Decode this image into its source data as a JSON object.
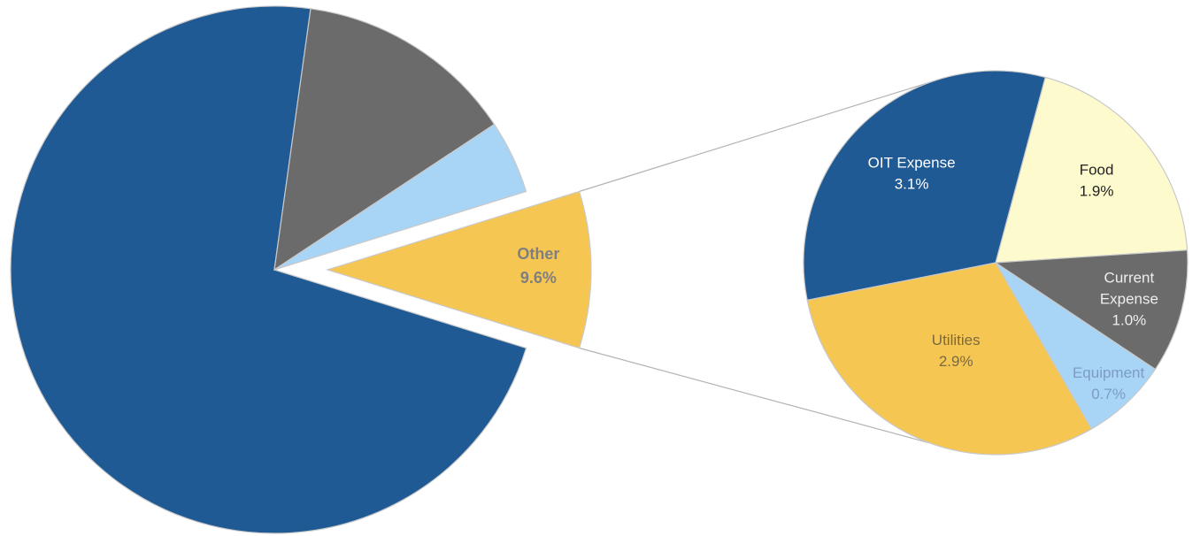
{
  "chart_data": [
    {
      "type": "pie",
      "series": [
        {
          "value": 72.4,
          "color": "#1f5a94"
        },
        {
          "value": 13.5,
          "color": "#6b6b6b"
        },
        {
          "value": 4.5,
          "color": "#a8d4f5"
        },
        {
          "name": "Other",
          "value": 9.6,
          "label": "9.6%",
          "color": "#f6c653",
          "exploded": true
        }
      ],
      "grid": false,
      "legend": "none"
    },
    {
      "type": "pie",
      "breakdown_of": "Other",
      "series": [
        {
          "name": "Food",
          "value": 1.9,
          "label": "1.9%",
          "color": "#fdfbce"
        },
        {
          "name": "Current Expense",
          "lines": [
            "Current",
            "Expense"
          ],
          "value": 1.0,
          "label": "1.0%",
          "color": "#6b6b6b"
        },
        {
          "name": "Equipment",
          "value": 0.7,
          "label": "0.7%",
          "color": "#a8d4f5"
        },
        {
          "name": "Utilities",
          "value": 2.9,
          "label": "2.9%",
          "color": "#f6c653"
        },
        {
          "name": "OIT Expense",
          "value": 3.1,
          "label": "3.1%",
          "color": "#1f5a94"
        }
      ],
      "grid": false,
      "legend": "none"
    }
  ]
}
